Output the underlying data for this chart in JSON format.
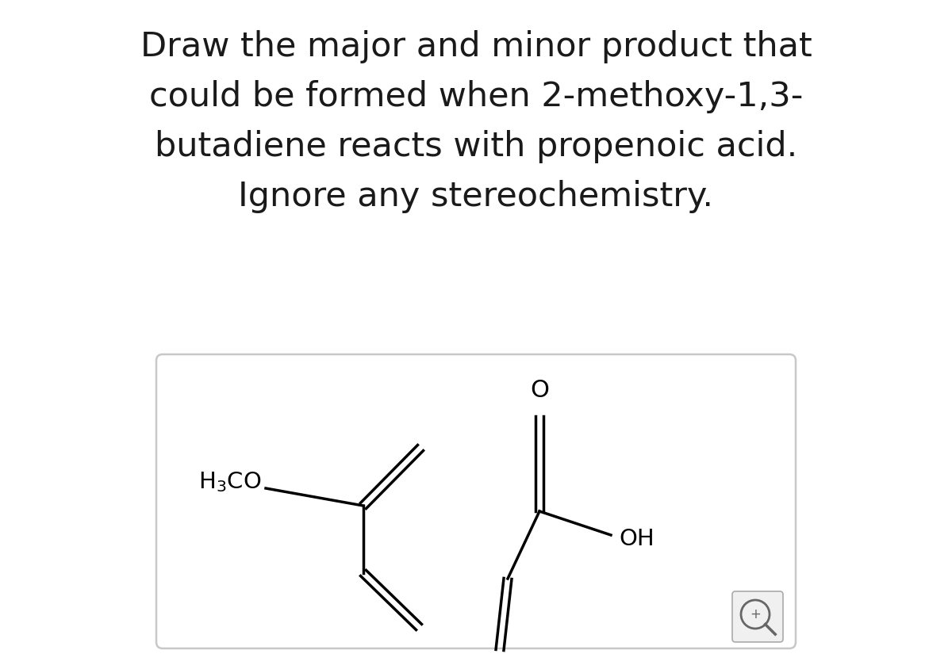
{
  "title_lines": [
    "Draw the major and minor product that",
    "could be formed when 2-methoxy-1,3-",
    "butadiene reacts with propenoic acid.",
    "Ignore any stereochemistry."
  ],
  "title_fontsize": 31,
  "title_color": "#1a1a1a",
  "bg_color": "#ffffff",
  "box_bg": "#ffffff",
  "box_border": "#c8c8c8",
  "line_color": "#000000",
  "text_color": "#000000",
  "label_fontsize": 21
}
